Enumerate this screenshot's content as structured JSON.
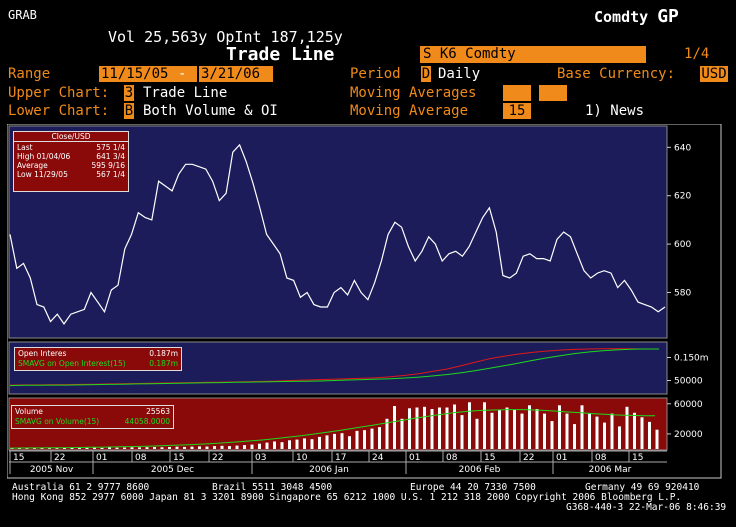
{
  "header": {
    "function": "GRAB",
    "market": "Comdty",
    "gp": "GP",
    "vol_line": "Vol 25,563y OpInt 187,125y",
    "title": "Trade Line",
    "ticker": "S K6 Comdty",
    "page": "1/4"
  },
  "settings": {
    "range_label": "Range",
    "range_start": "11/15/05",
    "range_dash": "-",
    "range_end": "3/21/06",
    "period_label": "Period",
    "period_code": "D",
    "period_value": "Daily",
    "currency_label": "Base Currency:",
    "currency_value": "USD",
    "upper_label": "Upper Chart:",
    "upper_code": "3",
    "upper_value": "Trade Line",
    "ma_label": "Moving Averages",
    "lower_label": "Lower Chart:",
    "lower_code": "B",
    "lower_value": "Both Volume & OI",
    "ma2_label": "Moving Average",
    "ma2_value": "15",
    "news": "1) News"
  },
  "legend_price": {
    "title": "Close/USD",
    "rows": [
      {
        "label": "Last",
        "value": "575 1/4"
      },
      {
        "label": "High  01/04/06",
        "value": "641 3/4"
      },
      {
        "label": "Average",
        "value": "595 9/16"
      },
      {
        "label": "Low  11/29/05",
        "value": "567 1/4"
      }
    ]
  },
  "legend_oi": {
    "line1_label": "Open Interes",
    "line1_value": "0.187m",
    "line2_label": "SMAVG on Open Interest(15)",
    "line2_value": "0.187m"
  },
  "legend_vol": {
    "line1_label": "Volume",
    "line1_value": "25563",
    "line2_label": "SMAVG on Volume(15)",
    "line2_value": "44058.0000"
  },
  "colors": {
    "price_bg": "#1c1c5a",
    "oi_bg": "#1c1c5a",
    "vol_bg": "#8a0a0a",
    "orange": "#f08a1a",
    "legend_bg": "#8a0a0a"
  },
  "chart_data": [
    {
      "type": "line",
      "name": "upper",
      "ylim": [
        562,
        648
      ],
      "yticks": [
        "640",
        "620",
        "600",
        "580"
      ],
      "values": [
        604,
        590,
        592,
        586,
        575,
        574,
        568,
        571,
        567,
        571,
        572,
        573,
        580,
        576,
        572,
        581,
        583,
        598,
        604,
        613,
        611,
        610,
        626,
        624,
        622,
        629,
        633,
        633,
        632,
        631,
        626,
        618,
        621,
        638,
        641,
        634,
        625,
        615,
        604,
        600,
        596,
        586,
        585,
        578,
        580,
        575,
        574,
        574,
        580,
        582,
        579,
        585,
        580,
        577,
        584,
        593,
        604,
        609,
        607,
        599,
        593,
        597,
        603,
        600,
        593,
        596,
        597,
        595,
        599,
        605,
        611,
        615,
        605,
        587,
        586,
        588,
        595,
        596,
        594,
        594,
        593,
        602,
        605,
        603,
        596,
        589,
        586,
        588,
        589,
        588,
        582,
        585,
        581,
        576,
        575,
        574,
        572,
        574
      ]
    },
    {
      "type": "line",
      "name": "lower-oi",
      "ytick_labels": [
        "0.150m",
        "50000"
      ],
      "series": [
        {
          "name": "Open Interes",
          "color": "#e01818",
          "values": [
            0.03,
            0.031,
            0.031,
            0.032,
            0.032,
            0.033,
            0.034,
            0.035,
            0.036,
            0.037,
            0.038,
            0.039,
            0.04,
            0.041,
            0.042,
            0.043,
            0.044,
            0.045,
            0.046,
            0.048,
            0.05,
            0.052,
            0.054,
            0.056,
            0.058,
            0.06,
            0.062,
            0.066,
            0.072,
            0.08,
            0.09,
            0.1,
            0.115,
            0.13,
            0.145,
            0.155,
            0.165,
            0.172,
            0.178,
            0.182,
            0.185,
            0.187,
            0.188,
            0.188,
            0.188,
            0.187,
            0.187
          ]
        },
        {
          "name": "SMAVG on Open Interest(15)",
          "color": "#1ed81e",
          "values": [
            0.028,
            0.029,
            0.029,
            0.03,
            0.03,
            0.031,
            0.032,
            0.033,
            0.034,
            0.035,
            0.036,
            0.037,
            0.038,
            0.039,
            0.04,
            0.041,
            0.042,
            0.043,
            0.044,
            0.045,
            0.046,
            0.047,
            0.048,
            0.05,
            0.052,
            0.054,
            0.056,
            0.058,
            0.061,
            0.065,
            0.07,
            0.076,
            0.084,
            0.093,
            0.103,
            0.114,
            0.125,
            0.137,
            0.148,
            0.158,
            0.167,
            0.174,
            0.179,
            0.183,
            0.186,
            0.187,
            0.187
          ]
        }
      ]
    },
    {
      "type": "bar",
      "name": "lower-volume",
      "ytick_labels": [
        "60000",
        "20000"
      ],
      "values": [
        800,
        900,
        700,
        1000,
        1200,
        900,
        1100,
        1500,
        1400,
        1200,
        1600,
        1800,
        1500,
        2000,
        1700,
        1900,
        2200,
        2100,
        2400,
        2600,
        2300,
        2700,
        3000,
        2800,
        3200,
        3500,
        3300,
        3800,
        4200,
        3900,
        4500,
        5200,
        5800,
        7000,
        8500,
        10000,
        9000,
        11500,
        12500,
        14000,
        13000,
        16000,
        18000,
        20000,
        21000,
        17000,
        24000,
        25000,
        27000,
        29000,
        40000,
        57000,
        40000,
        54000,
        55000,
        56000,
        53000,
        55000,
        55000,
        59000,
        45000,
        62000,
        40000,
        62000,
        48000,
        52000,
        55000,
        52000,
        47000,
        58000,
        53000,
        47000,
        37000,
        58000,
        47000,
        33000,
        58000,
        47000,
        43000,
        35000,
        47000,
        30000,
        56000,
        48000,
        42000,
        36000,
        25563
      ],
      "smavg": [
        1200,
        1300,
        1400,
        1500,
        1600,
        1700,
        1800,
        2000,
        2200,
        2400,
        2600,
        2900,
        3200,
        3500,
        3900,
        4300,
        4800,
        5300,
        5900,
        6500,
        7200,
        8000,
        8900,
        9800,
        10900,
        12000,
        13300,
        14700,
        16200,
        17800,
        19500,
        21300,
        23200,
        25200,
        27300,
        29400,
        31600,
        33800,
        36000,
        38200,
        40400,
        42500,
        44500,
        46300,
        48000,
        49400,
        50500,
        51300,
        51800,
        52100,
        52300,
        52200,
        51800,
        51200,
        50400,
        49500,
        48600,
        47700,
        46800,
        46000,
        45300,
        44800,
        44400,
        44100,
        44058
      ]
    }
  ],
  "xaxis": {
    "day_ticks": [
      "15",
      "22",
      "01",
      "08",
      "15",
      "22",
      "03",
      "10",
      "17",
      "24",
      "01",
      "08",
      "15",
      "22",
      "01",
      "08",
      "15"
    ],
    "month_labels": [
      "2005 Nov",
      "2005 Dec",
      "2006 Jan",
      "2006 Feb",
      "2006 Mar"
    ]
  },
  "footer": {
    "line1_a": "Australia 61 2 9777 8600",
    "line1_b": "Brazil 5511 3048 4500",
    "line1_c": "Europe 44 20 7330 7500",
    "line1_d": "Germany 49 69 920410",
    "line2": "Hong Kong 852 2977 6000 Japan 81 3 3201 8900 Singapore 65 6212 1000 U.S. 1 212 318 2000 Copyright 2006 Bloomberg L.P.",
    "line3": "G368-440-3 22-Mar-06  8:46:39"
  }
}
